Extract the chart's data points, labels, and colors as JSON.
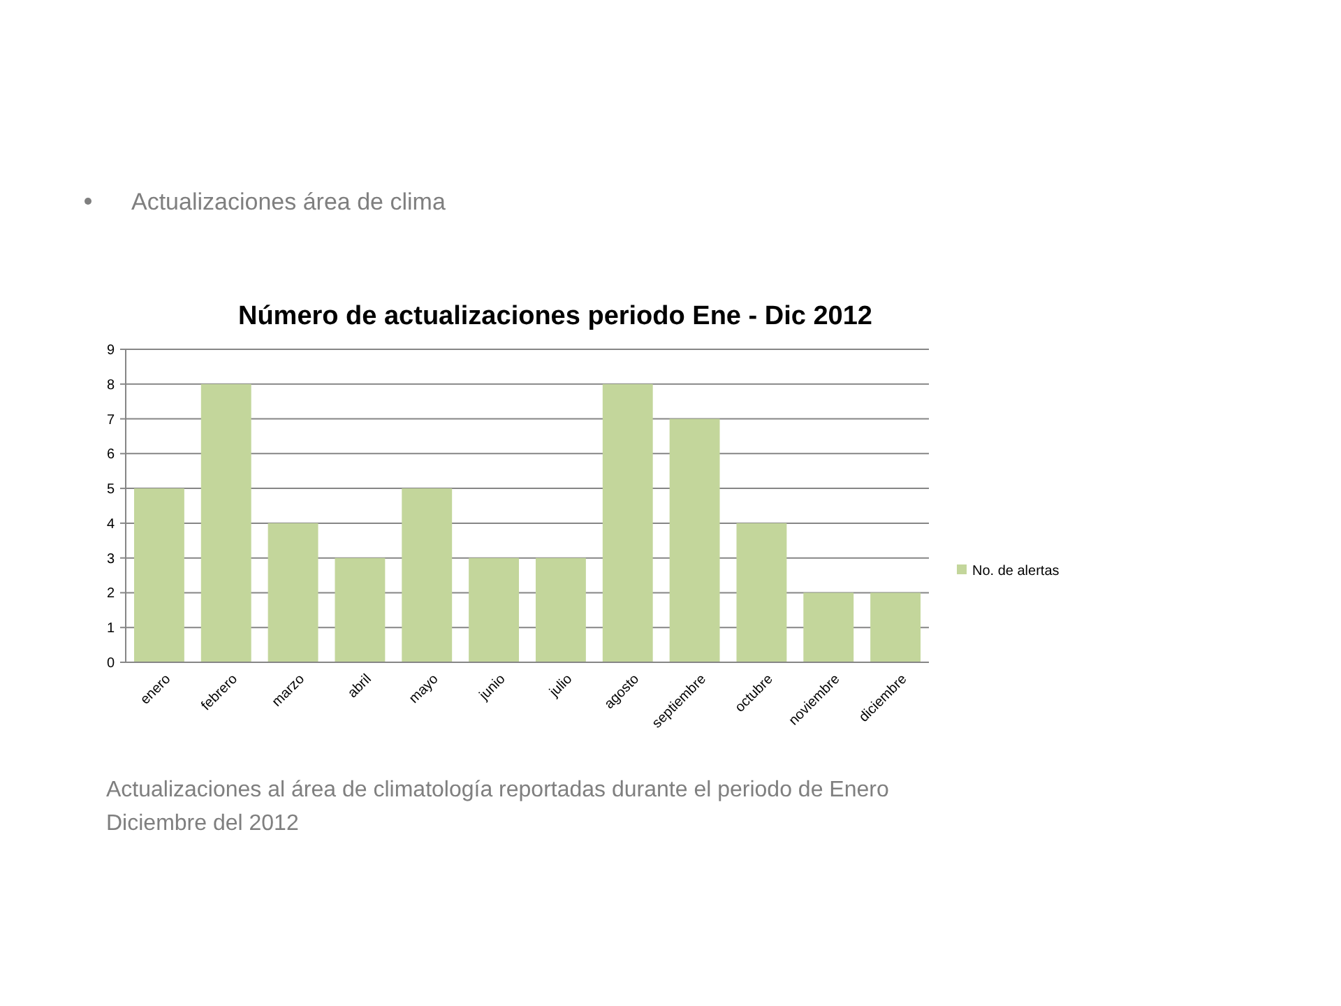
{
  "chart_data": {
    "type": "bar",
    "title": "Número de actualizaciones periodo Ene - Dic 2012",
    "categories": [
      "enero",
      "febrero",
      "marzo",
      "abril",
      "mayo",
      "junio",
      "julio",
      "agosto",
      "septiembre",
      "octubre",
      "noviembre",
      "diciembre"
    ],
    "series": [
      {
        "name": "No. de alertas",
        "color": "#c3d69b",
        "values": [
          5,
          8,
          4,
          3,
          5,
          3,
          3,
          8,
          7,
          4,
          2,
          2
        ]
      }
    ],
    "ylim": [
      0,
      9
    ],
    "yticks": [
      0,
      1,
      2,
      3,
      4,
      5,
      6,
      7,
      8,
      9
    ],
    "grid": "y",
    "legend": "right",
    "annotations": [
      "Actualizaciones área de clima",
      "Actualizaciones al área de climatología reportadas durante el periodo de Enero Diciembre del 2012"
    ]
  }
}
